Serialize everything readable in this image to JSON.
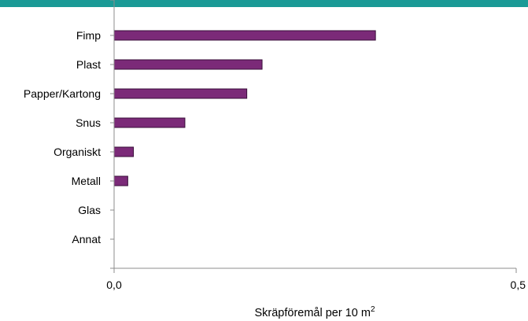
{
  "header_band_color": "#1a9a96",
  "chart_data": {
    "type": "bar",
    "orientation": "horizontal",
    "categories": [
      "Fimp",
      "Plast",
      "Papper/Kartong",
      "Snus",
      "Organiskt",
      "Metall",
      "Glas",
      "Annat"
    ],
    "values": [
      0.325,
      0.184,
      0.165,
      0.088,
      0.024,
      0.017,
      0.0,
      0.0
    ],
    "xlim": [
      0,
      0.5
    ],
    "xticks": [
      "0,0",
      "0,5"
    ],
    "xlabel": "Skräpföremål per 10 m",
    "xlabel_superscript": "2",
    "bar_color": "#7b2a78",
    "bar_edge_color": "#3a0f3a",
    "grid": false
  }
}
